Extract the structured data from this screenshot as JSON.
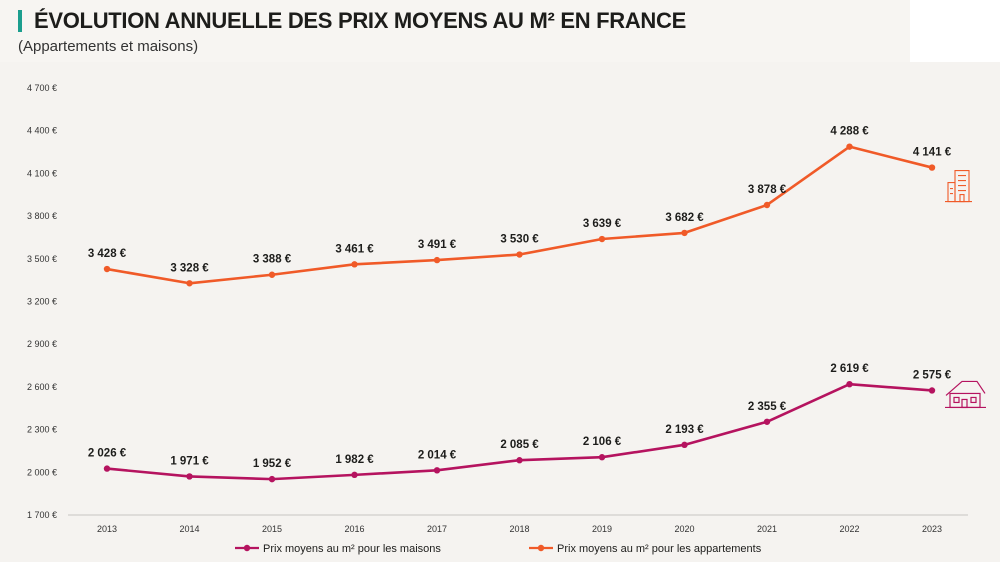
{
  "header": {
    "title": "ÉVOLUTION ANNUELLE DES PRIX MOYENS AU M² EN FRANCE",
    "subtitle": "(Appartements et maisons)"
  },
  "chart_data": {
    "type": "line",
    "title": "ÉVOLUTION ANNUELLE DES PRIX MOYENS AU M² EN FRANCE",
    "subtitle": "(Appartements et maisons)",
    "xlabel": "",
    "ylabel": "",
    "x": [
      "2013",
      "2014",
      "2015",
      "2016",
      "2017",
      "2018",
      "2019",
      "2020",
      "2021",
      "2022",
      "2023"
    ],
    "ylim": [
      1700,
      4700
    ],
    "yticks": [
      1700,
      2000,
      2300,
      2600,
      2900,
      3200,
      3500,
      3800,
      4100,
      4400,
      4700
    ],
    "ytick_labels": [
      "1 700 €",
      "2 000 €",
      "2 300 €",
      "2 600 €",
      "2 900 €",
      "3 200 €",
      "3 500 €",
      "3 800 €",
      "4 100 €",
      "4 400 €",
      "4 700 €"
    ],
    "grid": false,
    "legend_position": "bottom",
    "series": [
      {
        "name": "Prix moyens au m² pour les maisons",
        "color": "#b5135f",
        "icon": "house-icon",
        "values": [
          2026,
          1971,
          1952,
          1982,
          2014,
          2085,
          2106,
          2193,
          2355,
          2619,
          2575
        ],
        "labels": [
          "2 026 €",
          "1 971 €",
          "1 952 €",
          "1 982 €",
          "2 014 €",
          "2 085 €",
          "2 106 €",
          "2 193 €",
          "2 355 €",
          "2 619 €",
          "2 575 €"
        ]
      },
      {
        "name": "Prix moyens au m² pour les appartements",
        "color": "#f05a28",
        "icon": "apartment-building-icon",
        "values": [
          3428,
          3328,
          3388,
          3461,
          3491,
          3530,
          3639,
          3682,
          3878,
          4288,
          4141
        ],
        "labels": [
          "3 428 €",
          "3 328 €",
          "3 388 €",
          "3 461 €",
          "3 491 €",
          "3 530 €",
          "3 639 €",
          "3 682 €",
          "3 878 €",
          "4 288 €",
          "4 141 €"
        ]
      }
    ]
  }
}
